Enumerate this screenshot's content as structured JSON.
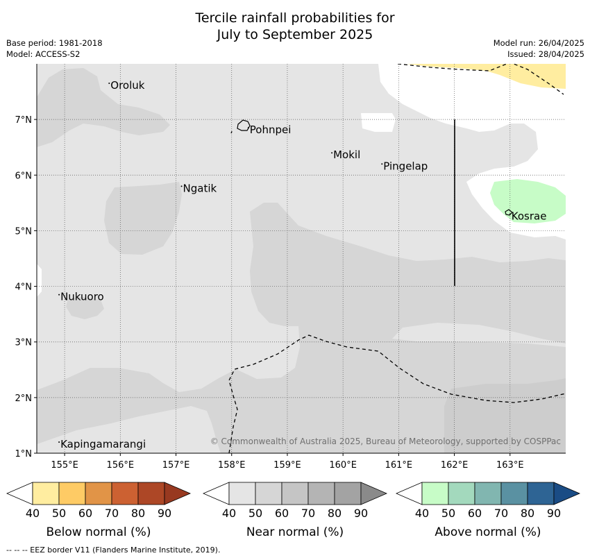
{
  "title_line1": "Tercile rainfall probabilities for",
  "title_line2": "July to September 2025",
  "base_period": "Base period: 1981-2018",
  "model": "Model: ACCESS-S2",
  "model_run": "Model run: 26/04/2025",
  "issued": "Issued: 28/04/2025",
  "copyright": "© Commonwealth of Australia 2025, Bureau of Meteorology, supported by COSPPac",
  "footer": "--  --  -- EEZ border V11 (Flanders Marine Institute, 2019).",
  "map": {
    "lon_range": [
      154.5,
      164.0
    ],
    "lat_range": [
      1.0,
      8.0
    ],
    "lon_ticks": [
      "155°E",
      "156°E",
      "157°E",
      "158°E",
      "159°E",
      "160°E",
      "161°E",
      "162°E",
      "163°E"
    ],
    "lat_ticks": [
      "1°N",
      "2°N",
      "3°N",
      "4°N",
      "5°N",
      "6°N",
      "7°N"
    ],
    "places": [
      {
        "name": "Oroluk",
        "lon": 155.8,
        "lat": 7.65
      },
      {
        "name": "Pohnpei",
        "lon": 158.3,
        "lat": 6.85
      },
      {
        "name": "Mokil",
        "lon": 159.8,
        "lat": 6.4
      },
      {
        "name": "Pingelap",
        "lon": 160.7,
        "lat": 6.2
      },
      {
        "name": "Ngatik",
        "lon": 157.1,
        "lat": 5.8
      },
      {
        "name": "Kosrae",
        "lon": 163.0,
        "lat": 5.3
      },
      {
        "name": "Nukuoro",
        "lon": 154.9,
        "lat": 3.85
      },
      {
        "name": "Kapingamarangi",
        "lon": 154.9,
        "lat": 1.2
      }
    ],
    "colors": {
      "near_normal_40_50": "#e5e5e5",
      "near_normal_50_60": "#d6d6d6",
      "below_normal_40_50": "#ffeda0",
      "above_normal_40_50": "#c7fcc7"
    }
  },
  "legends": [
    {
      "label": "Below normal (%)",
      "ticks": [
        "40",
        "50",
        "60",
        "70",
        "80",
        "90"
      ],
      "colors": [
        "#ffffff",
        "#ffeda0",
        "#fecb65",
        "#e19447",
        "#cc6132",
        "#ad4726",
        "#983920"
      ]
    },
    {
      "label": "Near normal (%)",
      "ticks": [
        "40",
        "50",
        "60",
        "70",
        "80",
        "90"
      ],
      "colors": [
        "#ffffff",
        "#e5e5e5",
        "#d6d6d6",
        "#c5c5c5",
        "#b4b4b4",
        "#a3a3a3",
        "#8a8a8a"
      ]
    },
    {
      "label": "Above normal (%)",
      "ticks": [
        "40",
        "50",
        "60",
        "70",
        "80",
        "90"
      ],
      "colors": [
        "#ffffff",
        "#c7fcc7",
        "#a3d9bd",
        "#81b6b0",
        "#5a91a2",
        "#2e6494",
        "#1a4c85"
      ]
    }
  ]
}
